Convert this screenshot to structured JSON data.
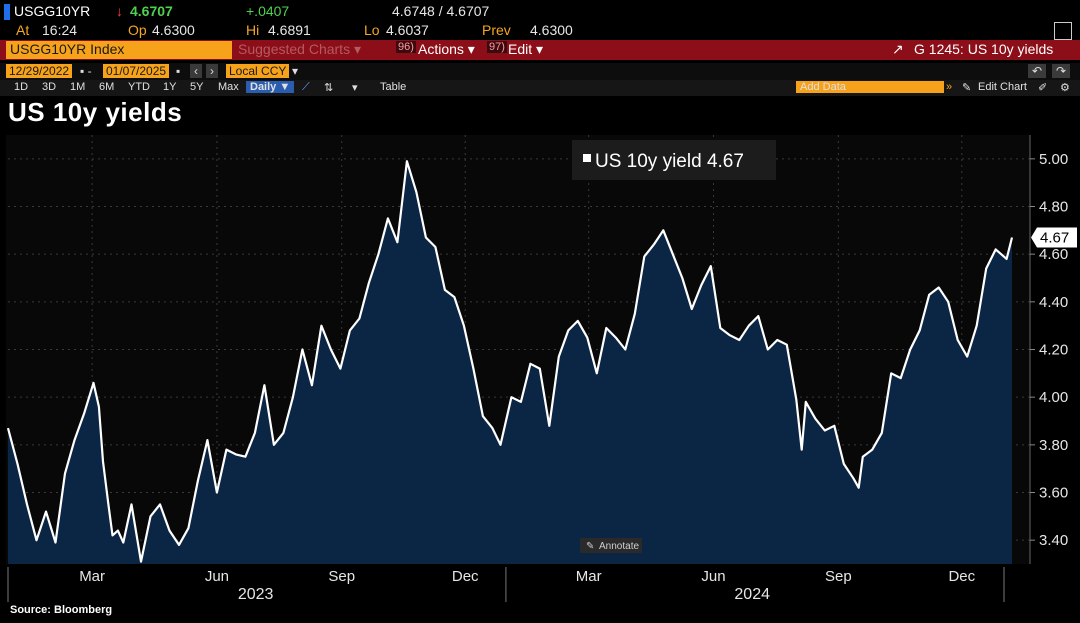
{
  "quote": {
    "ticker": "USGG10YR",
    "arrow": "↓",
    "last": "4.6707",
    "change": "+.0407",
    "bid_ask": "4.6748 / 4.6707",
    "at_label": "At",
    "at_time": "16:24",
    "op_label": "Op",
    "op_value": "4.6300",
    "hi_label": "Hi",
    "hi_value": "4.6891",
    "lo_label": "Lo",
    "lo_value": "4.6037",
    "prev_label": "Prev",
    "prev_value": "4.6300"
  },
  "command_bar": {
    "security": "USGG10YR Index",
    "suggested_num": "",
    "suggested": "Suggested Charts ▾",
    "actions_num": "96)",
    "actions": "Actions ▾",
    "edit_num": "97)",
    "edit": "Edit ▾",
    "chart_id": "G 1245: US 10y yields"
  },
  "date_bar": {
    "start": "12/29/2022",
    "end": "01/07/2025",
    "currency": "Local CCY"
  },
  "range_bar": {
    "ranges": [
      "1D",
      "3D",
      "1M",
      "6M",
      "YTD",
      "1Y",
      "5Y",
      "Max"
    ],
    "frequency": "Daily ▼",
    "table": "Table",
    "add_data_placeholder": "Add Data",
    "edit_chart": "Edit Chart"
  },
  "colors": {
    "accent_orange": "#f7a21b",
    "command_red": "#8b0e18",
    "line": "#ffffff",
    "area_fill": "#0b2545",
    "up_green": "#4fd14f",
    "down_red": "#ff3b3b"
  },
  "chart_data": {
    "type": "area",
    "title": "US 10y yields",
    "ylim": [
      3.3,
      5.1
    ],
    "yticks": [
      "5.00",
      "4.80",
      "4.60",
      "4.40",
      "4.20",
      "4.00",
      "3.80",
      "3.60",
      "3.40"
    ],
    "xtick_labels": [
      "Mar",
      "Jun",
      "Sep",
      "Dec",
      "Mar",
      "Jun",
      "Sep",
      "Dec"
    ],
    "year_labels": [
      "2023",
      "2024"
    ],
    "legend": "US 10y yield 4.67",
    "last_value_label": "4.67",
    "annotate_label": "Annotate",
    "grid": true,
    "series": [
      {
        "name": "US 10y yield",
        "x": [
          "2022-12-29",
          "2023-01-05",
          "2023-01-12",
          "2023-01-19",
          "2023-01-26",
          "2023-02-02",
          "2023-02-09",
          "2023-02-16",
          "2023-02-23",
          "2023-03-02",
          "2023-03-06",
          "2023-03-09",
          "2023-03-13",
          "2023-03-16",
          "2023-03-20",
          "2023-03-24",
          "2023-03-30",
          "2023-04-06",
          "2023-04-13",
          "2023-04-20",
          "2023-04-27",
          "2023-05-04",
          "2023-05-11",
          "2023-05-18",
          "2023-05-25",
          "2023-06-01",
          "2023-06-08",
          "2023-06-15",
          "2023-06-22",
          "2023-06-29",
          "2023-07-06",
          "2023-07-13",
          "2023-07-20",
          "2023-07-27",
          "2023-08-03",
          "2023-08-10",
          "2023-08-17",
          "2023-08-24",
          "2023-08-31",
          "2023-09-07",
          "2023-09-14",
          "2023-09-21",
          "2023-09-28",
          "2023-10-05",
          "2023-10-12",
          "2023-10-19",
          "2023-10-26",
          "2023-11-02",
          "2023-11-09",
          "2023-11-16",
          "2023-11-23",
          "2023-11-30",
          "2023-12-07",
          "2023-12-14",
          "2023-12-21",
          "2023-12-27",
          "2024-01-04",
          "2024-01-11",
          "2024-01-18",
          "2024-01-25",
          "2024-02-01",
          "2024-02-08",
          "2024-02-15",
          "2024-02-22",
          "2024-02-29",
          "2024-03-07",
          "2024-03-14",
          "2024-03-21",
          "2024-03-28",
          "2024-04-04",
          "2024-04-11",
          "2024-04-18",
          "2024-04-25",
          "2024-05-02",
          "2024-05-09",
          "2024-05-16",
          "2024-05-23",
          "2024-05-30",
          "2024-06-06",
          "2024-06-13",
          "2024-06-20",
          "2024-06-27",
          "2024-07-04",
          "2024-07-11",
          "2024-07-18",
          "2024-07-25",
          "2024-08-01",
          "2024-08-05",
          "2024-08-08",
          "2024-08-15",
          "2024-08-22",
          "2024-08-29",
          "2024-09-05",
          "2024-09-12",
          "2024-09-16",
          "2024-09-19",
          "2024-09-26",
          "2024-10-03",
          "2024-10-10",
          "2024-10-17",
          "2024-10-24",
          "2024-10-31",
          "2024-11-07",
          "2024-11-14",
          "2024-11-21",
          "2024-11-28",
          "2024-12-05",
          "2024-12-12",
          "2024-12-19",
          "2024-12-26",
          "2025-01-03",
          "2025-01-07"
        ],
        "values": [
          3.87,
          3.72,
          3.55,
          3.4,
          3.52,
          3.39,
          3.68,
          3.82,
          3.93,
          4.06,
          3.96,
          3.73,
          3.55,
          3.42,
          3.44,
          3.39,
          3.55,
          3.31,
          3.5,
          3.55,
          3.44,
          3.38,
          3.45,
          3.65,
          3.82,
          3.6,
          3.78,
          3.76,
          3.75,
          3.85,
          4.05,
          3.8,
          3.85,
          4.0,
          4.2,
          4.05,
          4.3,
          4.2,
          4.12,
          4.28,
          4.33,
          4.48,
          4.6,
          4.75,
          4.65,
          4.99,
          4.86,
          4.67,
          4.63,
          4.45,
          4.42,
          4.3,
          4.12,
          3.92,
          3.87,
          3.8,
          4.0,
          3.98,
          4.14,
          4.12,
          3.88,
          4.17,
          4.28,
          4.32,
          4.25,
          4.1,
          4.29,
          4.25,
          4.2,
          4.35,
          4.59,
          4.64,
          4.7,
          4.6,
          4.5,
          4.37,
          4.47,
          4.55,
          4.29,
          4.26,
          4.24,
          4.3,
          4.34,
          4.2,
          4.24,
          4.22,
          3.99,
          3.78,
          3.98,
          3.91,
          3.86,
          3.88,
          3.72,
          3.66,
          3.62,
          3.75,
          3.78,
          3.85,
          4.1,
          4.08,
          4.2,
          4.28,
          4.43,
          4.46,
          4.4,
          4.24,
          4.17,
          4.3,
          4.54,
          4.62,
          4.58,
          4.67
        ]
      }
    ]
  },
  "source": "Source: Bloomberg"
}
